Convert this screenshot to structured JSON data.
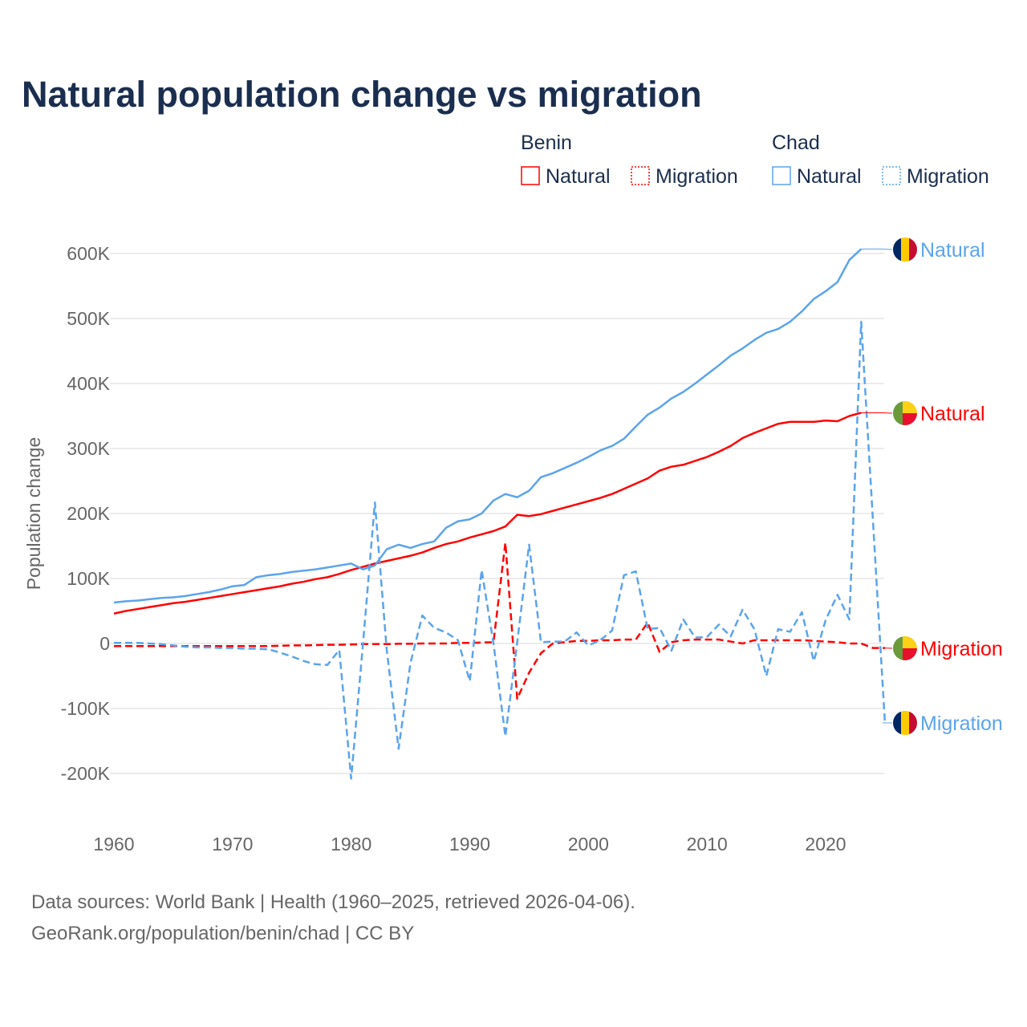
{
  "chart_data": {
    "type": "line",
    "title": "Natural population change vs migration",
    "ylabel": "Population change",
    "xlabel": "",
    "xlim": [
      1960,
      2025
    ],
    "ylim": [
      -250000,
      620000
    ],
    "x_ticks": [
      1960,
      1970,
      1980,
      1990,
      2000,
      2010,
      2020
    ],
    "x_tick_labels": [
      "1960",
      "1970",
      "1980",
      "1990",
      "2000",
      "2010",
      "2020"
    ],
    "y_ticks": [
      -200000,
      -100000,
      0,
      100000,
      200000,
      300000,
      400000,
      500000,
      600000
    ],
    "y_tick_labels": [
      "-200K",
      "-100K",
      "0",
      "100K",
      "200K",
      "300K",
      "400K",
      "500K",
      "600K"
    ],
    "grid": true,
    "legend": {
      "placement": "top-right",
      "groups": [
        {
          "name": "Benin",
          "items": [
            "Natural",
            "Migration"
          ]
        },
        {
          "name": "Chad",
          "items": [
            "Natural",
            "Migration"
          ]
        }
      ]
    },
    "series": [
      {
        "name": "Benin Natural",
        "country": "Benin",
        "kind": "Natural",
        "color": "#ff0000",
        "dash": false,
        "flag": "benin",
        "end_label": "Natural",
        "start_year": 1960,
        "values": [
          46000,
          50000,
          53000,
          56000,
          59000,
          62000,
          64000,
          67000,
          70000,
          73000,
          76000,
          79000,
          82000,
          85000,
          88000,
          92000,
          95000,
          99000,
          102000,
          107000,
          113000,
          118000,
          123000,
          127000,
          131000,
          135000,
          140000,
          147000,
          153000,
          157000,
          163000,
          168000,
          173000,
          180000,
          198000,
          196000,
          199000,
          204000,
          209000,
          214000,
          219000,
          224000,
          230000,
          238000,
          246000,
          254000,
          266000,
          272000,
          275000,
          281000,
          287000,
          295000,
          304000,
          316000,
          324000,
          331000,
          338000,
          341000,
          341000,
          341000,
          343000,
          342000,
          350000,
          355000
        ]
      },
      {
        "name": "Benin Migration",
        "country": "Benin",
        "kind": "Migration",
        "color": "#ff0000",
        "dash": true,
        "flag": "benin",
        "end_label": "Migration",
        "start_year": 1960,
        "values": [
          -4000,
          -4000,
          -4000,
          -4000,
          -4000,
          -4000,
          -4000,
          -4000,
          -4000,
          -4000,
          -4000,
          -4000,
          -4000,
          -4000,
          -3500,
          -3000,
          -3000,
          -2500,
          -2000,
          -2000,
          -1500,
          -1000,
          -1000,
          -1000,
          -500,
          -500,
          0,
          0,
          0,
          1000,
          1000,
          1500,
          2000,
          155000,
          -85000,
          -45000,
          -15000,
          0,
          2000,
          4000,
          4000,
          5000,
          5000,
          6000,
          6000,
          32000,
          -13000,
          2000,
          5000,
          6000,
          6000,
          6000,
          3000,
          0,
          5000,
          5000,
          5000,
          5000,
          5000,
          4000,
          3000,
          2000,
          0,
          0,
          -7000,
          -7000
        ]
      },
      {
        "name": "Chad Natural",
        "country": "Chad",
        "kind": "Natural",
        "color": "#5ba4ec",
        "dash": false,
        "flag": "chad",
        "end_label": "Natural",
        "start_year": 1960,
        "values": [
          63000,
          65000,
          66000,
          68000,
          70000,
          71000,
          73000,
          76000,
          79000,
          83000,
          88000,
          90000,
          102000,
          105000,
          107000,
          110000,
          112000,
          114000,
          117000,
          120000,
          123000,
          114000,
          120000,
          145000,
          152000,
          147000,
          153000,
          157000,
          178000,
          188000,
          191000,
          200000,
          220000,
          230000,
          225000,
          235000,
          256000,
          262000,
          270000,
          278000,
          287000,
          297000,
          304000,
          315000,
          334000,
          352000,
          363000,
          377000,
          387000,
          400000,
          414000,
          428000,
          443000,
          454000,
          467000,
          478000,
          484000,
          495000,
          511000,
          530000,
          542000,
          556000,
          590000,
          607000
        ]
      },
      {
        "name": "Chad Migration",
        "country": "Chad",
        "kind": "Migration",
        "color": "#5ba4ec",
        "dash": true,
        "flag": "chad",
        "end_label": "Migration",
        "start_year": 1960,
        "values": [
          1000,
          1000,
          1000,
          0,
          -1000,
          -3000,
          -5000,
          -6000,
          -6000,
          -7000,
          -7000,
          -8000,
          -8000,
          -9000,
          -14000,
          -20000,
          -27000,
          -32000,
          -33000,
          -10000,
          -208000,
          0,
          217000,
          -10000,
          -162000,
          -30000,
          43000,
          24000,
          17000,
          5000,
          -58000,
          113000,
          0,
          -143000,
          2000,
          152000,
          2000,
          3000,
          3000,
          17000,
          -3000,
          5000,
          20000,
          105000,
          111000,
          22000,
          24000,
          -11000,
          37000,
          9000,
          10000,
          29000,
          11000,
          52000,
          22000,
          -50000,
          22000,
          18000,
          48000,
          -27000,
          36000,
          75000,
          37000,
          495000,
          186000,
          -122000
        ]
      }
    ],
    "source_lines": [
      "Data sources: World Bank | Health (1960–2025, retrieved 2026-04-06).",
      "GeoRank.org/population/benin/chad | CC BY"
    ]
  }
}
